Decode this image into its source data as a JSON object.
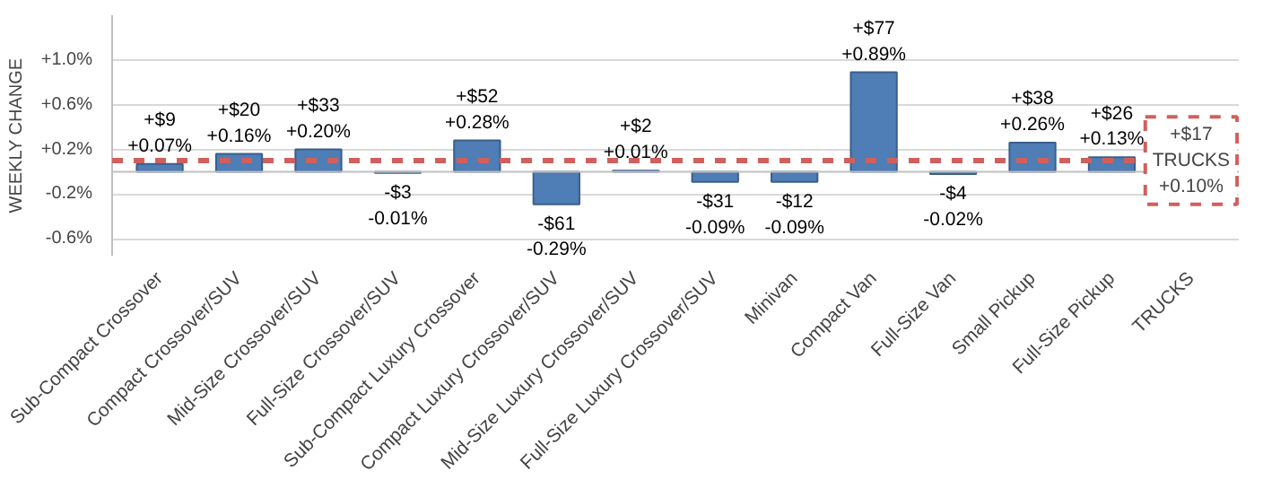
{
  "chart_data": {
    "type": "bar",
    "ylabel": "WEEKLY CHANGE",
    "categories": [
      "Sub-Compact Crossover",
      "Compact Crossover/SUV",
      "Mid-Size Crossover/SUV",
      "Full-Size Crossover/SUV",
      "Sub-Compact Luxury Crossover",
      "Compact Luxury Crossover/SUV",
      "Mid-Size Luxury Crossover/SUV",
      "Full-Size Luxury Crossover/SUV",
      "Minivan",
      "Compact Van",
      "Full-Size Van",
      "Small Pickup",
      "Full-Size Pickup",
      "TRUCKS"
    ],
    "values": [
      0.07,
      0.16,
      0.2,
      -0.01,
      0.28,
      -0.29,
      0.01,
      -0.09,
      -0.09,
      0.89,
      -0.02,
      0.26,
      0.13,
      null
    ],
    "value_labels": [
      "+$9\n+0.07%",
      "+$20\n+0.16%",
      "+$33\n+0.20%",
      "-$3\n-0.01%",
      "+$52\n+0.28%",
      "-$61\n-0.29%",
      "+$2\n+0.01%",
      "-$31\n-0.09%",
      "-$12\n-0.09%",
      "+$77\n+0.89%",
      "-$4\n-0.02%",
      "+$38\n+0.26%",
      "+$26\n+0.13%",
      null
    ],
    "color": "#4f7db5",
    "ylim": [
      -0.75,
      1.4
    ],
    "yticks": [
      {
        "value": -0.6,
        "label": "-0.6%"
      },
      {
        "value": -0.2,
        "label": "-0.2%"
      },
      {
        "value": 0.2,
        "label": "+0.2%"
      },
      {
        "value": 0.6,
        "label": "+0.6%"
      },
      {
        "value": 1.0,
        "label": "+1.0%"
      }
    ],
    "ref_lines": [
      {
        "axis": "y",
        "value": 0.1,
        "label": "+$17\nTRUCKS\n+0.10%",
        "color": "#d0605c",
        "line_style": "dashed"
      }
    ],
    "grid": "y"
  }
}
